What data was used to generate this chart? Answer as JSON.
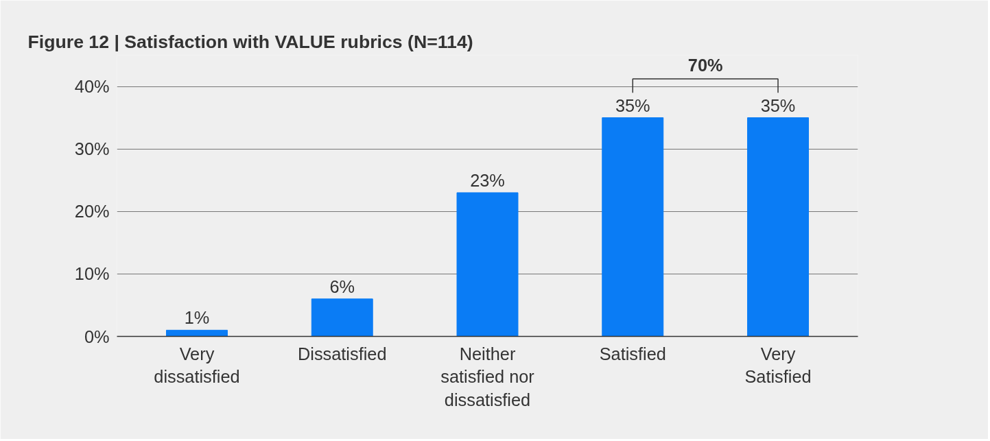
{
  "chart_data": {
    "type": "bar",
    "title": "Figure 12 | Satisfaction with VALUE rubrics (N=114)",
    "categories": [
      "Very dissatisfied",
      "Dissatisfied",
      "Neither satisfied nor dissatisfied",
      "Satisfied",
      "Very Satisfied"
    ],
    "values": [
      1,
      6,
      23,
      35,
      35
    ],
    "value_labels": [
      "1%",
      "6%",
      "23%",
      "35%",
      "35%"
    ],
    "color": "#0a7cf5",
    "ylim": [
      0,
      45
    ],
    "yticks": [
      {
        "value": 0,
        "label": "0%"
      },
      {
        "value": 10,
        "label": "10%"
      },
      {
        "value": 20,
        "label": "20%"
      },
      {
        "value": 30,
        "label": "30%"
      },
      {
        "value": 40,
        "label": "40%"
      }
    ],
    "grid": "y",
    "annotations": [
      "70%"
    ]
  }
}
